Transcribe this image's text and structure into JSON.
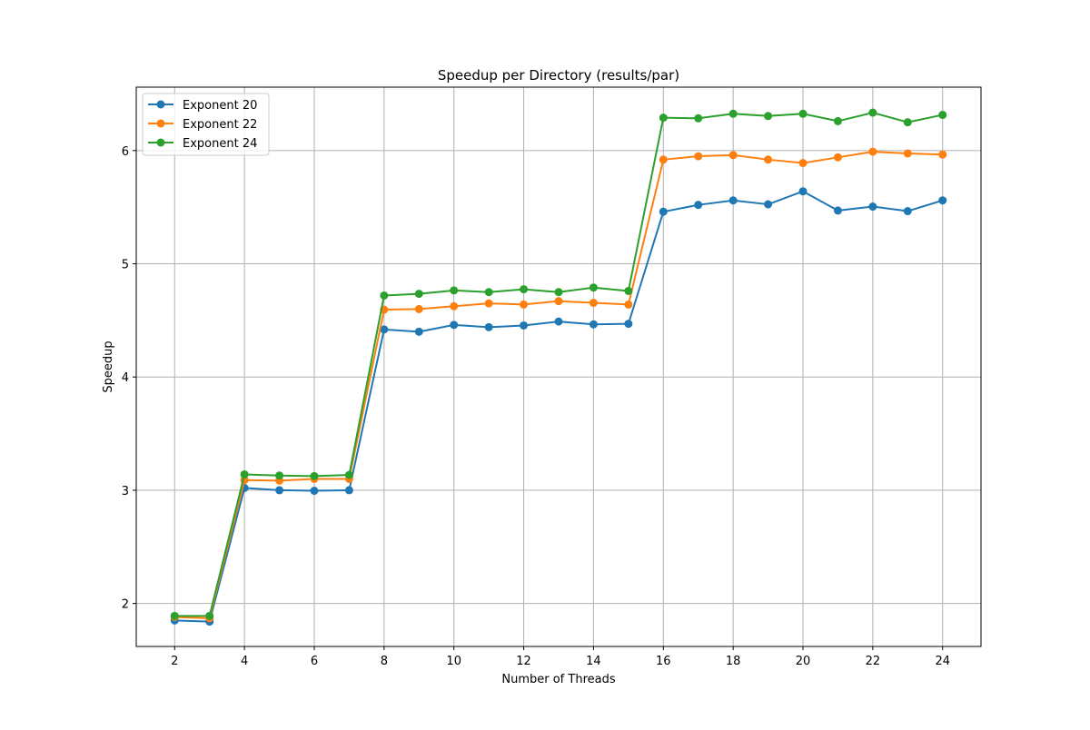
{
  "chart_data": {
    "type": "line",
    "title": "Speedup per Directory (results/par)",
    "xlabel": "Number of Threads",
    "ylabel": "Speedup",
    "xlim": [
      0.9,
      25.1
    ],
    "ylim": [
      1.62,
      6.56
    ],
    "xticks": [
      "2",
      "4",
      "6",
      "8",
      "10",
      "12",
      "14",
      "16",
      "18",
      "20",
      "22",
      "24"
    ],
    "yticks": [
      "2",
      "3",
      "4",
      "5",
      "6"
    ],
    "grid": true,
    "legend_position": "top-left",
    "x": [
      2,
      3,
      4,
      5,
      6,
      7,
      8,
      9,
      10,
      11,
      12,
      13,
      14,
      15,
      16,
      17,
      18,
      19,
      20,
      21,
      22,
      23,
      24
    ],
    "series": [
      {
        "name": "Exponent 20",
        "color": "#1f77b4",
        "values": [
          1.85,
          1.84,
          3.02,
          3.0,
          2.995,
          3.0,
          4.42,
          4.4,
          4.46,
          4.44,
          4.455,
          4.49,
          4.465,
          4.47,
          5.46,
          5.52,
          5.56,
          5.525,
          5.64,
          5.47,
          5.505,
          5.465,
          5.56
        ]
      },
      {
        "name": "Exponent 22",
        "color": "#ff7f0e",
        "values": [
          1.88,
          1.87,
          3.09,
          3.085,
          3.1,
          3.1,
          4.595,
          4.6,
          4.625,
          4.65,
          4.64,
          4.67,
          4.655,
          4.64,
          5.92,
          5.95,
          5.96,
          5.92,
          5.89,
          5.94,
          5.99,
          5.975,
          5.965
        ]
      },
      {
        "name": "Exponent 24",
        "color": "#2ca02c",
        "values": [
          1.89,
          1.89,
          3.14,
          3.13,
          3.125,
          3.135,
          4.72,
          4.735,
          4.765,
          4.75,
          4.775,
          4.75,
          4.79,
          4.76,
          6.29,
          6.285,
          6.325,
          6.305,
          6.325,
          6.26,
          6.335,
          6.25,
          6.315
        ]
      }
    ]
  }
}
